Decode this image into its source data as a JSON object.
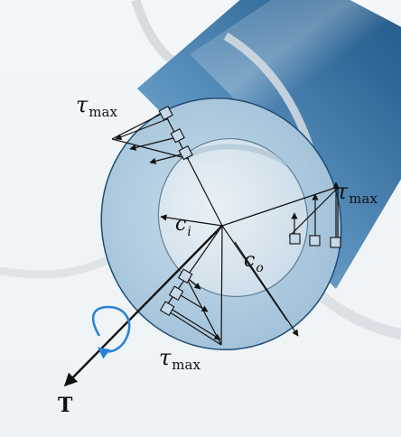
{
  "labels": {
    "tau": "τ",
    "max": "max",
    "c": "c",
    "inner_sub": "i",
    "outer_sub": "o",
    "torque": "T"
  },
  "colors": {
    "shaft_light": "#a9c8de",
    "shaft_mid": "#4f86b3",
    "shaft_dark": "#1d4f7c",
    "ring_face": "#b2cee1",
    "bore": "#dfe9f1",
    "rotation_arrow": "#2a82d8",
    "ink": "#111111"
  },
  "icons": {
    "rotation": "curved-arrow-icon",
    "stress_elements": "square-element-icon"
  }
}
